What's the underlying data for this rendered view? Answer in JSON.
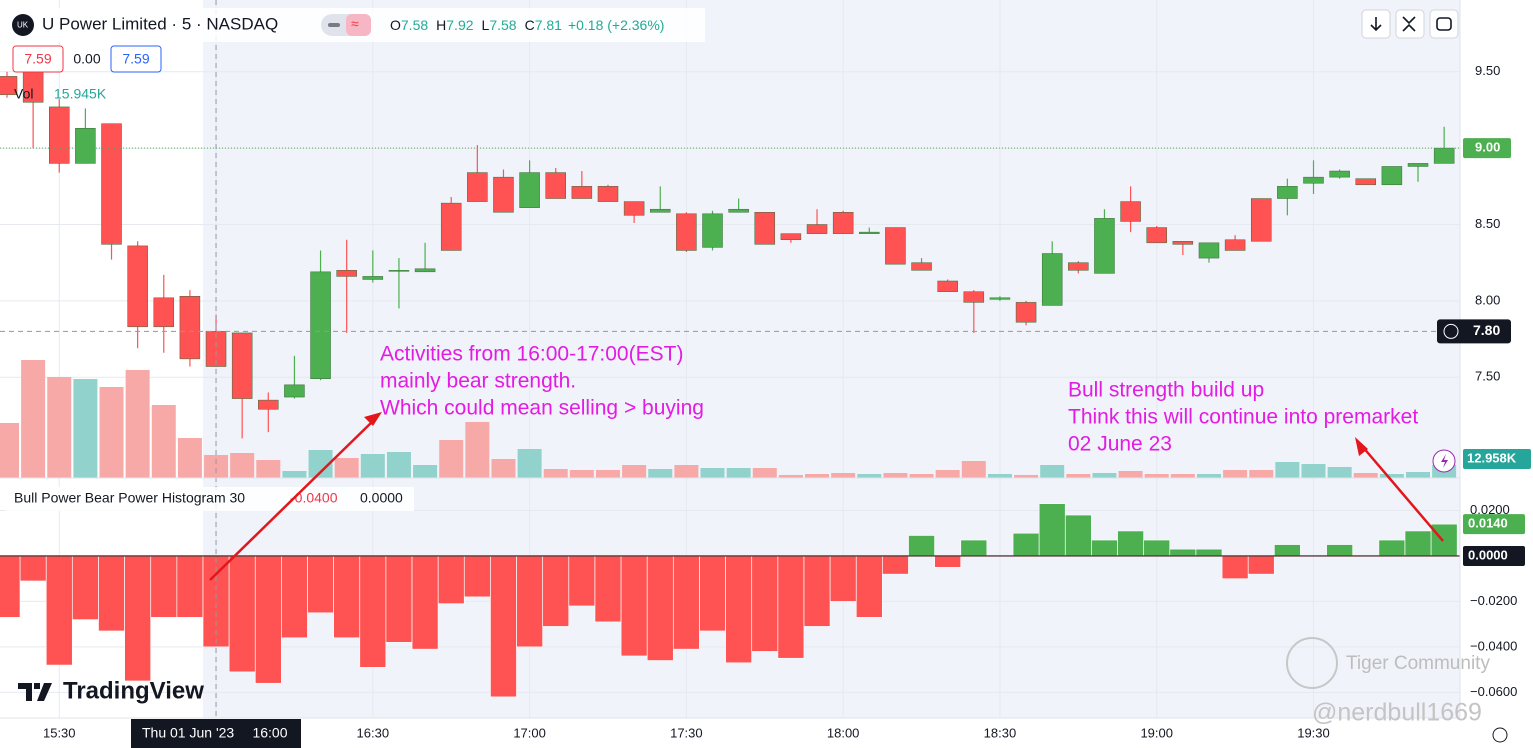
{
  "header": {
    "symbol": "U Power Limited · 5 · NASDAQ",
    "ohlc": [
      {
        "label": "O",
        "value": "7.58"
      },
      {
        "label": "H",
        "value": "7.92"
      },
      {
        "label": "L",
        "value": "7.58"
      },
      {
        "label": "C",
        "value": "7.81"
      },
      {
        "label": "",
        "value": "+0.18 (+2.36%)"
      }
    ],
    "quote": [
      "7.59",
      "0.00",
      "7.59"
    ],
    "volume_legend": {
      "label": "Vol",
      "value": "15.945K"
    }
  },
  "indicator_legend": {
    "name": "Bull Power Bear Power Histogram 30",
    "values": [
      "-0.0400",
      "0.0000"
    ]
  },
  "crosshair": {
    "date": "Thu 01 Jun '23",
    "price": {
      "value": 7.8,
      "label": "7.80"
    }
  },
  "annotations": [
    {
      "lines": [
        "Activities from 16:00-17:00(EST)",
        "mainly bear strength.",
        "Which could mean selling > buying"
      ]
    },
    {
      "lines": [
        "Bull strength build up",
        "Think this will continue into premarket",
        "02 June 23"
      ]
    }
  ],
  "watermarks": {
    "brand": "TradingView",
    "community": "Tiger Community",
    "author": "@nerdbull1669"
  },
  "chart_data": [
    {
      "type": "candlestick",
      "categories": [
        null,
        null,
        "15:30",
        null,
        null,
        null,
        null,
        null,
        "16:00",
        null,
        null,
        null,
        null,
        null,
        "16:30",
        null,
        null,
        null,
        null,
        null,
        "17:00",
        null,
        null,
        null,
        null,
        null,
        "17:30",
        null,
        null,
        null,
        null,
        null,
        "18:00",
        null,
        null,
        null,
        null,
        null,
        "18:30",
        null,
        null,
        null,
        null,
        null,
        "19:00",
        null,
        null,
        null,
        null,
        null,
        "19:30",
        null,
        null,
        null,
        null,
        null
      ],
      "open": [
        9.47,
        9.5,
        9.27,
        8.9,
        9.16,
        8.36,
        8.02,
        8.03,
        7.8,
        7.79,
        7.35,
        7.37,
        7.49,
        8.2,
        8.14,
        8.2,
        8.19,
        8.64,
        8.84,
        8.81,
        8.61,
        8.84,
        8.75,
        8.75,
        8.65,
        8.58,
        8.57,
        8.35,
        8.58,
        8.58,
        8.44,
        8.5,
        8.58,
        8.44,
        8.48,
        8.25,
        8.13,
        8.06,
        8.01,
        7.99,
        7.97,
        8.25,
        8.18,
        8.65,
        8.48,
        8.39,
        8.28,
        8.4,
        8.67,
        8.67,
        8.77,
        8.81,
        8.8,
        8.76,
        8.88,
        8.9
      ],
      "high": [
        9.5,
        9.55,
        9.32,
        9.26,
        9.16,
        8.39,
        8.17,
        8.07,
        7.91,
        7.79,
        7.4,
        7.64,
        8.33,
        8.4,
        8.33,
        8.28,
        8.38,
        8.68,
        9.02,
        8.86,
        8.92,
        8.87,
        8.85,
        8.76,
        8.65,
        8.75,
        8.58,
        8.59,
        8.67,
        8.58,
        8.44,
        8.6,
        8.59,
        8.48,
        8.48,
        8.28,
        8.14,
        8.07,
        8.03,
        8.0,
        8.39,
        8.26,
        8.6,
        8.75,
        8.49,
        8.39,
        8.38,
        8.43,
        8.67,
        8.8,
        8.92,
        8.86,
        8.8,
        8.88,
        8.9,
        9.14
      ],
      "low": [
        9.33,
        9.0,
        8.84,
        8.9,
        8.27,
        7.69,
        7.66,
        7.57,
        7.57,
        7.1,
        7.14,
        7.36,
        7.48,
        7.79,
        8.12,
        7.95,
        8.19,
        8.33,
        8.65,
        8.58,
        8.61,
        8.67,
        8.67,
        8.65,
        8.51,
        8.58,
        8.32,
        8.33,
        8.58,
        8.37,
        8.38,
        8.44,
        8.44,
        8.44,
        8.24,
        8.2,
        8.06,
        7.79,
        8.0,
        7.84,
        7.97,
        8.18,
        8.18,
        8.45,
        8.38,
        8.3,
        8.25,
        8.33,
        8.39,
        8.56,
        8.7,
        8.8,
        8.76,
        8.76,
        8.78,
        8.9
      ],
      "close": [
        9.35,
        9.3,
        8.9,
        9.13,
        8.37,
        7.83,
        7.83,
        7.62,
        7.57,
        7.36,
        7.29,
        7.45,
        8.19,
        8.16,
        8.16,
        8.2,
        8.21,
        8.33,
        8.65,
        8.58,
        8.84,
        8.67,
        8.67,
        8.65,
        8.56,
        8.6,
        8.33,
        8.57,
        8.6,
        8.37,
        8.4,
        8.44,
        8.44,
        8.45,
        8.24,
        8.2,
        8.06,
        7.99,
        8.02,
        7.86,
        8.31,
        8.2,
        8.54,
        8.52,
        8.38,
        8.37,
        8.38,
        8.33,
        8.39,
        8.75,
        8.81,
        8.85,
        8.76,
        8.88,
        8.9,
        9.0
      ],
      "volume": [
        55,
        118,
        101,
        99,
        91,
        108,
        73,
        40,
        23,
        25,
        18,
        7,
        28,
        20,
        24,
        26,
        13,
        38,
        56,
        19,
        29,
        9,
        8,
        8,
        13,
        9,
        13,
        10,
        10,
        10,
        3,
        4,
        5,
        4,
        5,
        4,
        8,
        17,
        4,
        3,
        13,
        4,
        5,
        7,
        4,
        4,
        4,
        8,
        8,
        16,
        14,
        11,
        5,
        4,
        6,
        12.958
      ],
      "last_price_label": "9.00",
      "last_volume_label": "12.958K",
      "up_color": "#4caf50",
      "down_color": "#ff5252",
      "volume_up_color": "#92d2cc",
      "volume_down_color": "#f7a9a7",
      "ylim": [
        6.84,
        9.97
      ],
      "yticks": [
        {
          "value": 7.5,
          "label": "7.50"
        },
        {
          "value": 8.0,
          "label": "8.00"
        },
        {
          "value": 8.5,
          "label": "8.50"
        },
        {
          "value": 9.0,
          "label": "9.00"
        },
        {
          "value": 9.5,
          "label": "9.50"
        }
      ],
      "grid": true
    },
    {
      "type": "histogram",
      "values": [
        -0.027,
        -0.011,
        -0.048,
        -0.028,
        -0.033,
        -0.055,
        -0.027,
        -0.027,
        -0.04,
        -0.051,
        -0.056,
        -0.036,
        -0.025,
        -0.036,
        -0.049,
        -0.038,
        -0.041,
        -0.021,
        -0.018,
        -0.062,
        -0.04,
        -0.031,
        -0.022,
        -0.029,
        -0.044,
        -0.046,
        -0.041,
        -0.033,
        -0.047,
        -0.042,
        -0.045,
        -0.031,
        -0.02,
        -0.027,
        -0.008,
        0.009,
        -0.005,
        0.007,
        0,
        0.01,
        0.023,
        0.018,
        0.007,
        0.011,
        0.007,
        0.003,
        0.003,
        -0.01,
        -0.008,
        0.005,
        0,
        0.005,
        0,
        0.007,
        0.011,
        0.014
      ],
      "last_label": "0.0140",
      "baseline": {
        "value": 0,
        "label": "0.0000"
      },
      "up_color": "#4caf50",
      "down_color": "#ff5252",
      "ylim": [
        -0.0713,
        0.0343
      ],
      "yticks": [
        {
          "value": -0.06,
          "label": "−0.0600"
        },
        {
          "value": -0.04,
          "label": "−0.0400"
        },
        {
          "value": -0.02,
          "label": "−0.0200"
        },
        {
          "value": 0.02,
          "label": "0.0200"
        }
      ],
      "grid": true
    }
  ]
}
